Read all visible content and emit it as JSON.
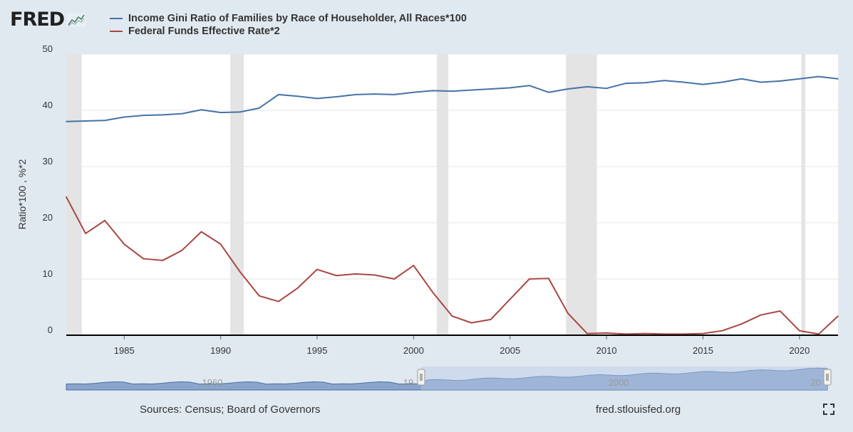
{
  "brand": {
    "logo_text": "FRED",
    "logo_icon": "line-graph-icon"
  },
  "legend": [
    {
      "label": "Income Gini Ratio of Families by Race of Householder, All Races*100",
      "color": "#4572a7"
    },
    {
      "label": "Federal Funds Effective Rate*2",
      "color": "#aa4643"
    }
  ],
  "footer": {
    "sources": "Sources: Census; Board of Governors",
    "site": "fred.stlouisfed.org"
  },
  "controls": {
    "fullscreen_icon": "fullscreen-icon"
  },
  "navigator": {
    "labels": [
      "1960",
      "19",
      "2000",
      "20"
    ],
    "series_color": "#4572a7"
  },
  "chart_data": {
    "type": "line",
    "title": "",
    "xlabel": "",
    "ylabel": "Ratio*100 , %*2",
    "xlim": [
      1982,
      2022
    ],
    "ylim": [
      0,
      50
    ],
    "x_ticks": [
      "1985",
      "1990",
      "1995",
      "2000",
      "2005",
      "2010",
      "2015",
      "2020"
    ],
    "y_ticks": [
      "0",
      "10",
      "20",
      "30",
      "40",
      "50"
    ],
    "recessions": [
      [
        1982,
        1982.8
      ],
      [
        1990.5,
        1991.2
      ],
      [
        2001.2,
        2001.8
      ],
      [
        2007.9,
        2009.5
      ],
      [
        2020.1,
        2020.3
      ]
    ],
    "x": [
      1982,
      1983,
      1984,
      1985,
      1986,
      1987,
      1988,
      1989,
      1990,
      1991,
      1992,
      1993,
      1994,
      1995,
      1996,
      1997,
      1998,
      1999,
      2000,
      2001,
      2002,
      2003,
      2004,
      2005,
      2006,
      2007,
      2008,
      2009,
      2010,
      2011,
      2012,
      2013,
      2014,
      2015,
      2016,
      2017,
      2018,
      2019,
      2020,
      2021,
      2022
    ],
    "series": [
      {
        "name": "Income Gini Ratio of Families by Race of Householder, All Races*100",
        "color": "#4572a7",
        "values": [
          38.0,
          38.1,
          38.2,
          38.8,
          39.1,
          39.2,
          39.4,
          40.1,
          39.6,
          39.7,
          40.4,
          42.8,
          42.5,
          42.1,
          42.4,
          42.8,
          42.9,
          42.8,
          43.2,
          43.5,
          43.4,
          43.6,
          43.8,
          44.0,
          44.4,
          43.2,
          43.8,
          44.2,
          43.9,
          44.8,
          44.9,
          45.3,
          45.0,
          44.6,
          45.0,
          45.6,
          45.0,
          45.2,
          45.6,
          46.0,
          45.6
        ]
      },
      {
        "name": "Federal Funds Effective Rate*2",
        "color": "#aa4643",
        "values": [
          24.6,
          18.1,
          20.4,
          16.2,
          13.6,
          13.3,
          15.1,
          18.4,
          16.2,
          11.3,
          7.0,
          6.0,
          8.4,
          11.7,
          10.6,
          10.9,
          10.7,
          10.0,
          12.4,
          7.6,
          3.4,
          2.2,
          2.8,
          6.4,
          10.0,
          10.1,
          3.9,
          0.3,
          0.4,
          0.2,
          0.3,
          0.2,
          0.2,
          0.3,
          0.8,
          2.0,
          3.6,
          4.3,
          0.8,
          0.2,
          3.4
        ]
      }
    ]
  }
}
